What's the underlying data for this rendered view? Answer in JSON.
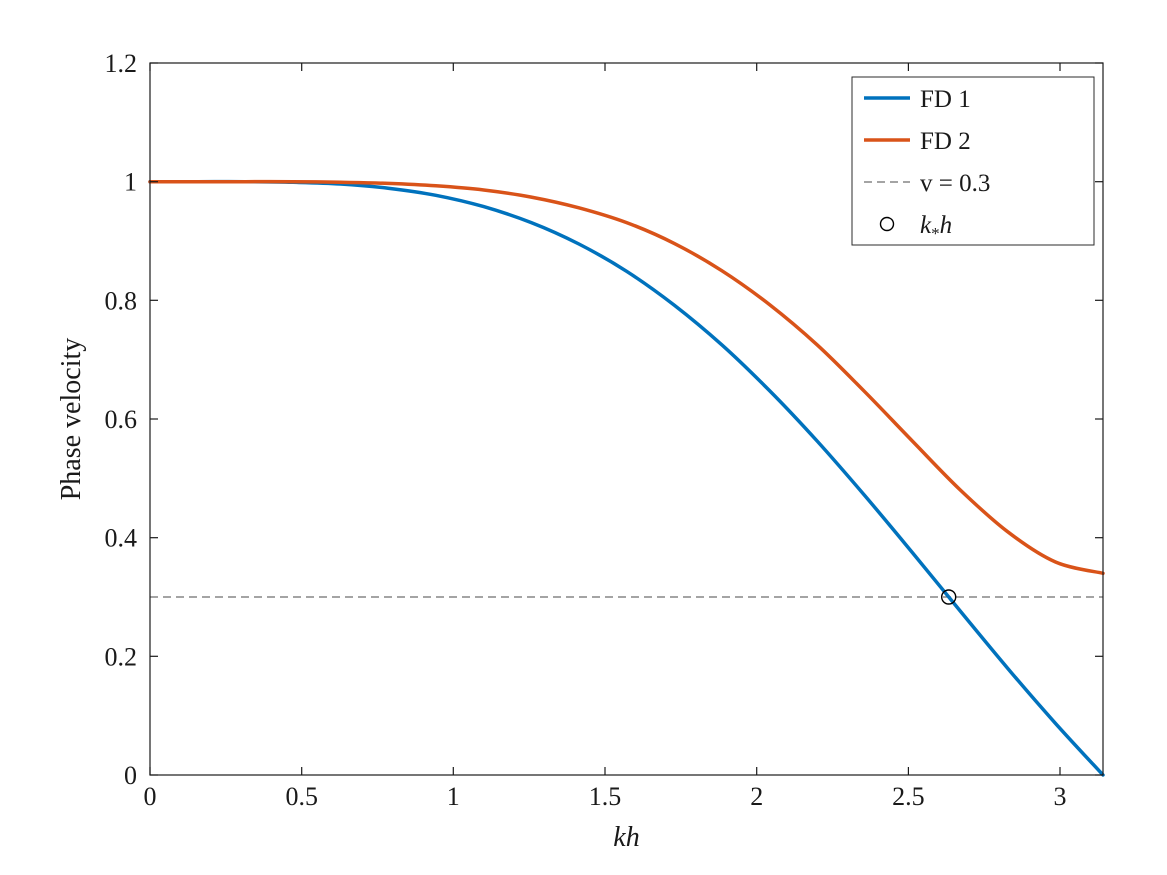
{
  "chart_data": {
    "type": "line",
    "title": "",
    "xlabel": "kh",
    "ylabel": "Phase velocity",
    "xlim": [
      0,
      3.1416
    ],
    "ylim": [
      0,
      1.2
    ],
    "xticks": [
      0,
      0.5,
      1,
      1.5,
      2,
      2.5,
      3
    ],
    "xtick_labels": [
      "0",
      "0.5",
      "1",
      "1.5",
      "2",
      "2.5",
      "3"
    ],
    "yticks": [
      0,
      0.2,
      0.4,
      0.6,
      0.8,
      1,
      1.2
    ],
    "ytick_labels": [
      "0",
      "0.2",
      "0.4",
      "0.6",
      "0.8",
      "1",
      "1.2"
    ],
    "grid": false,
    "background_color": "#ffffff",
    "axis_color": "#1a1a1a",
    "legend_position": "top-right",
    "x": [
      0,
      0.157,
      0.314,
      0.471,
      0.628,
      0.785,
      0.942,
      1.1,
      1.257,
      1.414,
      1.571,
      1.728,
      1.885,
      2.042,
      2.199,
      2.356,
      2.513,
      2.67,
      2.827,
      2.985,
      3.1416
    ],
    "series": [
      {
        "name": "FD 1",
        "color": "#0072BD",
        "style": "solid",
        "values": [
          1,
          1,
          1,
          0.999,
          0.996,
          0.989,
          0.977,
          0.958,
          0.931,
          0.895,
          0.849,
          0.792,
          0.725,
          0.648,
          0.563,
          0.471,
          0.375,
          0.277,
          0.18,
          0.087,
          0
        ]
      },
      {
        "name": "FD 2",
        "color": "#D95319",
        "style": "solid",
        "values": [
          1,
          1,
          1,
          1,
          0.999,
          0.997,
          0.993,
          0.986,
          0.974,
          0.956,
          0.931,
          0.896,
          0.85,
          0.793,
          0.725,
          0.646,
          0.563,
          0.481,
          0.41,
          0.359,
          0.34
        ]
      }
    ],
    "reference_line": {
      "label": "v = 0.3",
      "y": 0.3,
      "color": "#6e6e6e",
      "style": "dashed"
    },
    "marker": {
      "label": "k*h",
      "x": 2.633,
      "y": 0.3,
      "shape": "circle",
      "color": "#000000"
    }
  }
}
